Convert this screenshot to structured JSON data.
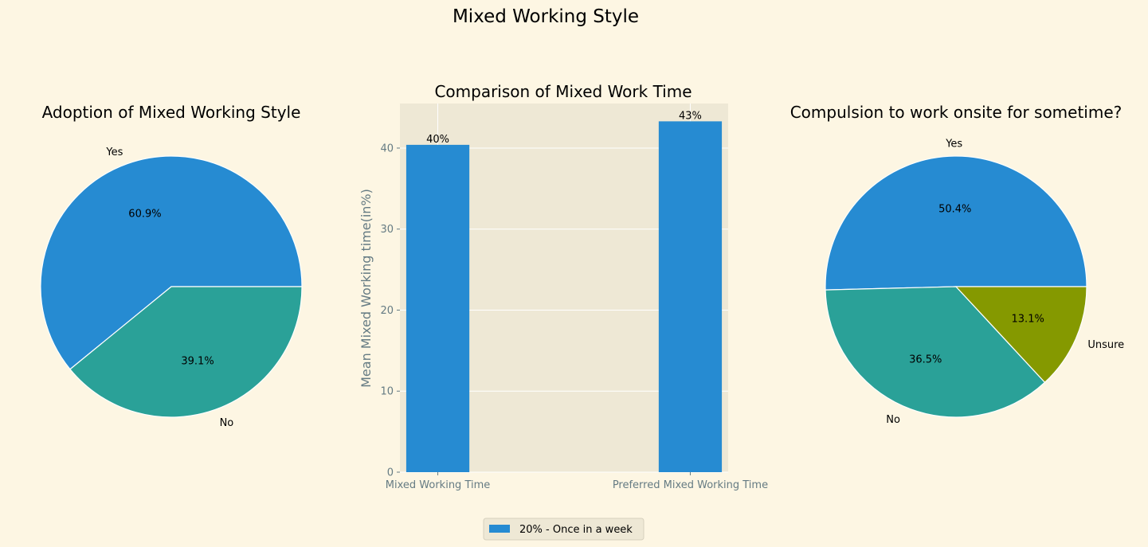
{
  "figure": {
    "suptitle": "Mixed Working Style",
    "colors": {
      "background": "#fdf6e3",
      "axes_bg": "#eee8d5",
      "grid": "#ffffff",
      "tick": "#657b83",
      "text": "#000000",
      "blue": "#268bd2",
      "teal": "#2aa198",
      "olive": "#859900",
      "legend_bg": "#eee8d5",
      "legend_border": "#d6d0bd"
    }
  },
  "legend": {
    "label": "20% - Once in a week",
    "color": "#268bd2"
  },
  "chart_data": [
    {
      "type": "pie",
      "title": "Adoption of Mixed Working Style",
      "labels": [
        "Yes",
        "No"
      ],
      "values": [
        60.9,
        39.1
      ],
      "pct_labels": [
        "60.9%",
        "39.1%"
      ],
      "colors": [
        "#268bd2",
        "#2aa198"
      ]
    },
    {
      "type": "bar",
      "title": "Comparison of Mixed Work Time",
      "categories": [
        "Mixed Working Time",
        "Preferred Mixed Working Time"
      ],
      "values": [
        40.4,
        43.3
      ],
      "data_labels": [
        "40%",
        "43%"
      ],
      "ylabel": "Mean Mixed Working time(in%)",
      "xlabel": "",
      "ylim": [
        0,
        45.5
      ],
      "yticks": [
        "0",
        "10",
        "20",
        "30",
        "40"
      ],
      "ytick_values": [
        0,
        10,
        20,
        30,
        40
      ],
      "grid": true,
      "color": "#268bd2"
    },
    {
      "type": "pie",
      "title": "Compulsion to work onsite for sometime?",
      "labels": [
        "Yes",
        "No",
        "Unsure"
      ],
      "values": [
        50.4,
        36.5,
        13.1
      ],
      "pct_labels": [
        "50.4%",
        "36.5%",
        "13.1%"
      ],
      "colors": [
        "#268bd2",
        "#2aa198",
        "#859900"
      ]
    }
  ]
}
